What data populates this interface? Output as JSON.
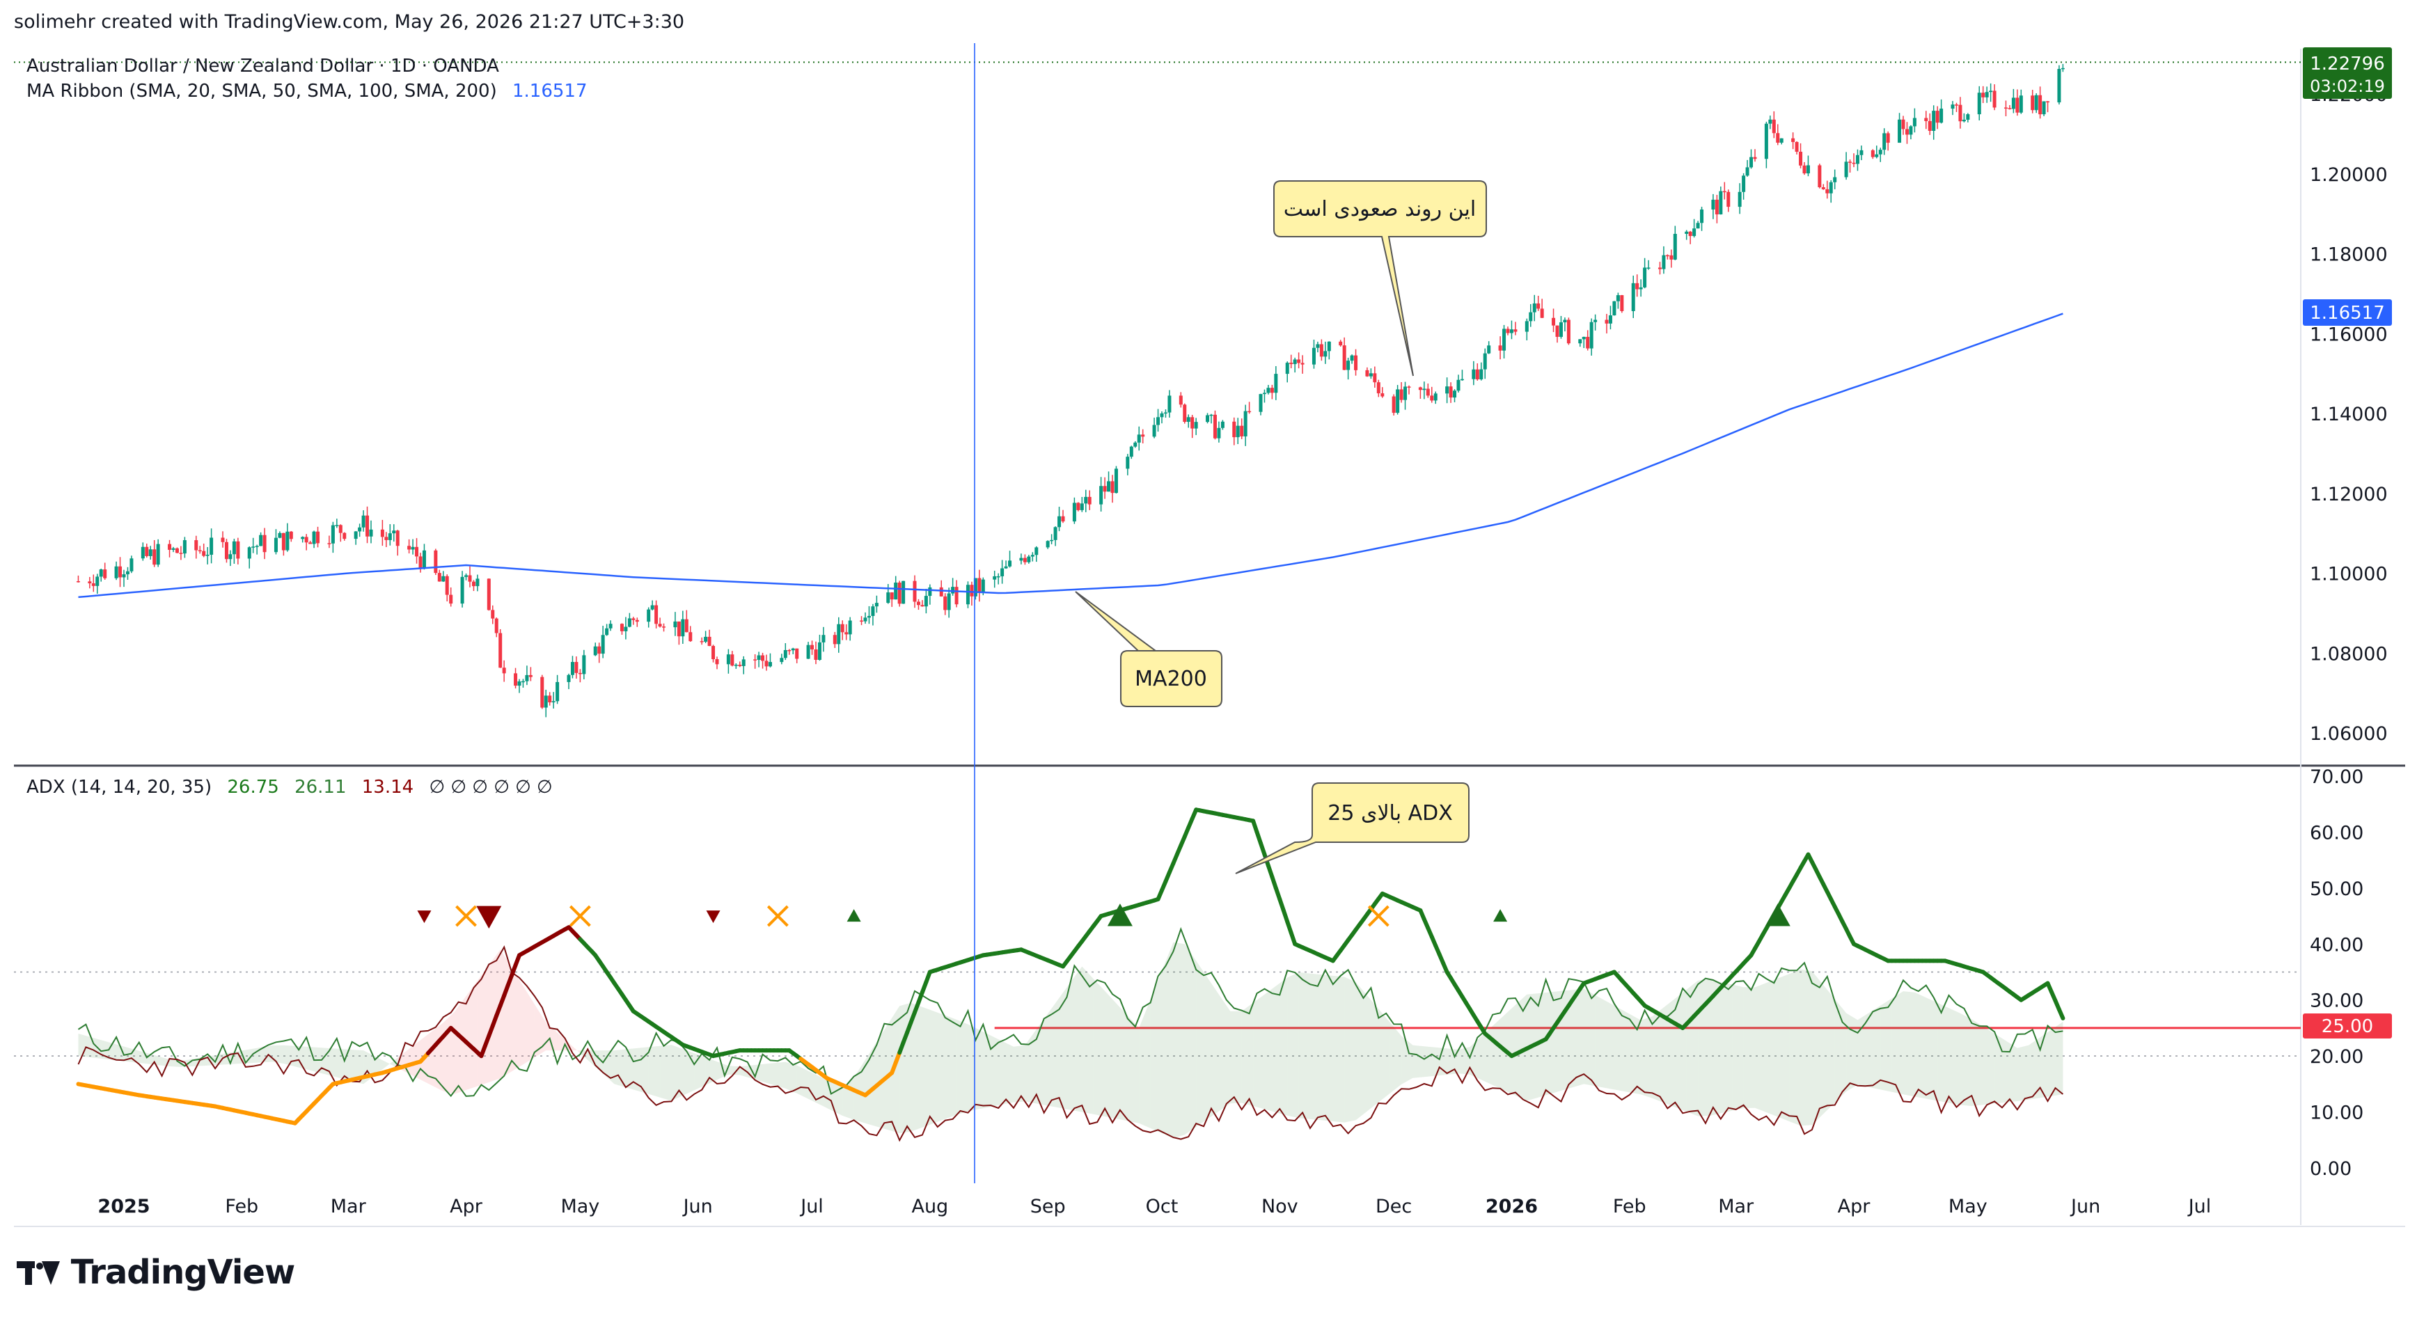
{
  "header": {
    "created_by": "solimehr created with TradingView.com, May 26, 2026 21:27 UTC+3:30"
  },
  "legend": {
    "symbol": "Australian Dollar / New Zealand Dollar · 1D · OANDA",
    "ma_name": "MA Ribbon (SMA, 20, SMA, 50, SMA, 100, SMA, 200)",
    "ma_value": "1.16517",
    "adx_name": "ADX (14, 14, 20, 35)",
    "adx_v1": "26.75",
    "adx_v2": "26.11",
    "adx_v3": "13.14",
    "adx_na": "∅ ∅ ∅ ∅ ∅ ∅"
  },
  "badges": {
    "price": "1.22796",
    "countdown": "03:02:19",
    "ma200": "1.16517",
    "adx_level": "25.00"
  },
  "annotations": {
    "uptrend": "این روند صعودی است",
    "ma200": "MA200",
    "adx": "ADX بالای 25"
  },
  "logo": {
    "text": "TradingView"
  },
  "colors": {
    "up": "#089981",
    "down": "#f23645",
    "ma": "#2962ff",
    "adx_strong": "#1b7a1b",
    "adx_weak_bear": "#8b0000",
    "adx_range": "#ff9800",
    "di_plus": "#2e7d32",
    "di_minus": "#7b1010",
    "level": "#f23645"
  },
  "chart_data": [
    {
      "type": "candlestick",
      "series_name": "AUDNZD",
      "ylim": [
        1.05,
        1.235
      ],
      "y_ticks": [
        "1.06000",
        "1.08000",
        "1.10000",
        "1.12000",
        "1.14000",
        "1.16000",
        "1.18000",
        "1.20000",
        "1.22000"
      ],
      "x_ticks": [
        "2025",
        "Feb",
        "Mar",
        "Apr",
        "May",
        "Jun",
        "Jul",
        "Aug",
        "Sep",
        "Oct",
        "Nov",
        "Dec",
        "2026",
        "Feb",
        "Mar",
        "Apr",
        "May",
        "Jun",
        "Jul"
      ],
      "close_trend": [
        [
          "2024-12-20",
          1.098
        ],
        [
          "2025-01-10",
          1.105
        ],
        [
          "2025-02-05",
          1.107
        ],
        [
          "2025-03-05",
          1.112
        ],
        [
          "2025-03-20",
          1.104
        ],
        [
          "2025-03-28",
          1.094
        ],
        [
          "2025-04-05",
          1.101
        ],
        [
          "2025-04-10",
          1.078
        ],
        [
          "2025-04-22",
          1.068
        ],
        [
          "2025-05-10",
          1.086
        ],
        [
          "2025-05-20",
          1.091
        ],
        [
          "2025-06-05",
          1.08
        ],
        [
          "2025-06-20",
          1.078
        ],
        [
          "2025-07-05",
          1.082
        ],
        [
          "2025-07-20",
          1.096
        ],
        [
          "2025-08-05",
          1.093
        ],
        [
          "2025-08-18",
          1.098
        ],
        [
          "2025-09-01",
          1.11
        ],
        [
          "2025-09-20",
          1.124
        ],
        [
          "2025-10-01",
          1.143
        ],
        [
          "2025-10-20",
          1.134
        ],
        [
          "2025-11-01",
          1.15
        ],
        [
          "2025-11-10",
          1.157
        ],
        [
          "2025-11-20",
          1.153
        ],
        [
          "2025-12-01",
          1.143
        ],
        [
          "2025-12-20",
          1.148
        ],
        [
          "2026-01-05",
          1.166
        ],
        [
          "2026-01-20",
          1.158
        ],
        [
          "2026-02-05",
          1.174
        ],
        [
          "2026-02-20",
          1.19
        ],
        [
          "2026-03-01",
          1.195
        ],
        [
          "2026-03-10",
          1.212
        ],
        [
          "2026-03-25",
          1.197
        ],
        [
          "2026-04-10",
          1.21
        ],
        [
          "2026-04-25",
          1.215
        ],
        [
          "2026-05-10",
          1.219
        ],
        [
          "2026-05-20",
          1.217
        ],
        [
          "2026-05-26",
          1.228
        ]
      ],
      "ma200": [
        [
          "2024-12-20",
          1.094
        ],
        [
          "2025-03-01",
          1.1
        ],
        [
          "2025-04-01",
          1.102
        ],
        [
          "2025-05-15",
          1.099
        ],
        [
          "2025-07-01",
          1.097
        ],
        [
          "2025-08-20",
          1.095
        ],
        [
          "2025-10-01",
          1.097
        ],
        [
          "2025-11-15",
          1.104
        ],
        [
          "2026-01-01",
          1.113
        ],
        [
          "2026-02-15",
          1.13
        ],
        [
          "2026-03-15",
          1.141
        ],
        [
          "2026-04-15",
          1.151
        ],
        [
          "2026-05-26",
          1.165
        ]
      ]
    },
    {
      "type": "line",
      "series_name": "ADX",
      "ylim": [
        0,
        70
      ],
      "y_ticks": [
        "0.00",
        "10.00",
        "20.00",
        "30.00",
        "40.00",
        "50.00",
        "60.00",
        "70.00"
      ],
      "levels": [
        20,
        25,
        35
      ],
      "adx": [
        [
          "2024-12-20",
          15
        ],
        [
          "2025-01-05",
          13
        ],
        [
          "2025-01-25",
          11
        ],
        [
          "2025-02-15",
          8
        ],
        [
          "2025-02-25",
          15
        ],
        [
          "2025-03-10",
          17
        ],
        [
          "2025-03-20",
          19
        ],
        [
          "2025-03-28",
          25
        ],
        [
          "2025-04-05",
          20
        ],
        [
          "2025-04-15",
          38
        ],
        [
          "2025-04-28",
          43
        ],
        [
          "2025-05-05",
          38
        ],
        [
          "2025-05-15",
          28
        ],
        [
          "2025-05-28",
          22
        ],
        [
          "2025-06-05",
          20
        ],
        [
          "2025-06-12",
          21
        ],
        [
          "2025-06-25",
          21
        ],
        [
          "2025-07-05",
          16
        ],
        [
          "2025-07-15",
          13
        ],
        [
          "2025-07-22",
          17
        ],
        [
          "2025-08-01",
          35
        ],
        [
          "2025-08-15",
          38
        ],
        [
          "2025-08-25",
          39
        ],
        [
          "2025-09-05",
          36
        ],
        [
          "2025-09-15",
          45
        ],
        [
          "2025-09-30",
          48
        ],
        [
          "2025-10-10",
          64
        ],
        [
          "2025-10-25",
          62
        ],
        [
          "2025-11-05",
          40
        ],
        [
          "2025-11-15",
          37
        ],
        [
          "2025-11-28",
          49
        ],
        [
          "2025-12-08",
          46
        ],
        [
          "2025-12-15",
          35
        ],
        [
          "2025-12-25",
          24
        ],
        [
          "2026-01-01",
          20
        ],
        [
          "2026-01-10",
          23
        ],
        [
          "2026-01-20",
          33
        ],
        [
          "2026-01-28",
          35
        ],
        [
          "2026-02-05",
          29
        ],
        [
          "2026-02-15",
          25
        ],
        [
          "2026-02-22",
          30
        ],
        [
          "2026-03-05",
          38
        ],
        [
          "2026-03-20",
          56
        ],
        [
          "2026-04-01",
          40
        ],
        [
          "2026-04-10",
          37
        ],
        [
          "2026-04-25",
          37
        ],
        [
          "2026-05-05",
          35
        ],
        [
          "2026-05-15",
          30
        ],
        [
          "2026-05-22",
          33
        ],
        [
          "2026-05-26",
          26.75
        ]
      ],
      "di_plus": [
        [
          "2024-12-20",
          24
        ],
        [
          "2025-01-15",
          19
        ],
        [
          "2025-02-10",
          22
        ],
        [
          "2025-03-05",
          21
        ],
        [
          "2025-03-28",
          13
        ],
        [
          "2025-04-10",
          16
        ],
        [
          "2025-04-22",
          21
        ],
        [
          "2025-05-10",
          21
        ],
        [
          "2025-05-25",
          22
        ],
        [
          "2025-06-10",
          18
        ],
        [
          "2025-06-25",
          19
        ],
        [
          "2025-07-10",
          14
        ],
        [
          "2025-07-25",
          30
        ],
        [
          "2025-08-10",
          26
        ],
        [
          "2025-08-25",
          21
        ],
        [
          "2025-09-10",
          36
        ],
        [
          "2025-09-25",
          25
        ],
        [
          "2025-10-05",
          42
        ],
        [
          "2025-10-20",
          27
        ],
        [
          "2025-11-05",
          35
        ],
        [
          "2025-11-20",
          34
        ],
        [
          "2025-12-05",
          22
        ],
        [
          "2025-12-20",
          21
        ],
        [
          "2026-01-05",
          31
        ],
        [
          "2026-01-20",
          32
        ],
        [
          "2026-02-05",
          26
        ],
        [
          "2026-02-20",
          34
        ],
        [
          "2026-03-05",
          32
        ],
        [
          "2026-03-20",
          36
        ],
        [
          "2026-04-01",
          26
        ],
        [
          "2026-04-15",
          32
        ],
        [
          "2026-05-01",
          27
        ],
        [
          "2026-05-15",
          21
        ],
        [
          "2026-05-26",
          26.11
        ]
      ],
      "di_minus": [
        [
          "2024-12-20",
          20
        ],
        [
          "2025-01-15",
          18
        ],
        [
          "2025-02-10",
          19
        ],
        [
          "2025-03-05",
          15
        ],
        [
          "2025-03-28",
          27
        ],
        [
          "2025-04-10",
          39
        ],
        [
          "2025-04-22",
          26
        ],
        [
          "2025-05-10",
          15
        ],
        [
          "2025-05-25",
          12
        ],
        [
          "2025-06-10",
          17
        ],
        [
          "2025-06-25",
          14
        ],
        [
          "2025-07-10",
          9
        ],
        [
          "2025-07-25",
          6
        ],
        [
          "2025-08-10",
          10
        ],
        [
          "2025-08-25",
          12
        ],
        [
          "2025-09-10",
          10
        ],
        [
          "2025-09-25",
          8
        ],
        [
          "2025-10-05",
          5
        ],
        [
          "2025-10-20",
          12
        ],
        [
          "2025-11-05",
          9
        ],
        [
          "2025-11-20",
          8
        ],
        [
          "2025-12-05",
          16
        ],
        [
          "2025-12-20",
          17
        ],
        [
          "2026-01-05",
          12
        ],
        [
          "2026-01-20",
          15
        ],
        [
          "2026-02-05",
          13
        ],
        [
          "2026-02-20",
          9
        ],
        [
          "2026-03-05",
          11
        ],
        [
          "2026-03-20",
          7
        ],
        [
          "2026-04-01",
          15
        ],
        [
          "2026-04-15",
          13
        ],
        [
          "2026-05-01",
          11
        ],
        [
          "2026-05-15",
          12
        ],
        [
          "2026-05-26",
          13.14
        ]
      ]
    }
  ]
}
